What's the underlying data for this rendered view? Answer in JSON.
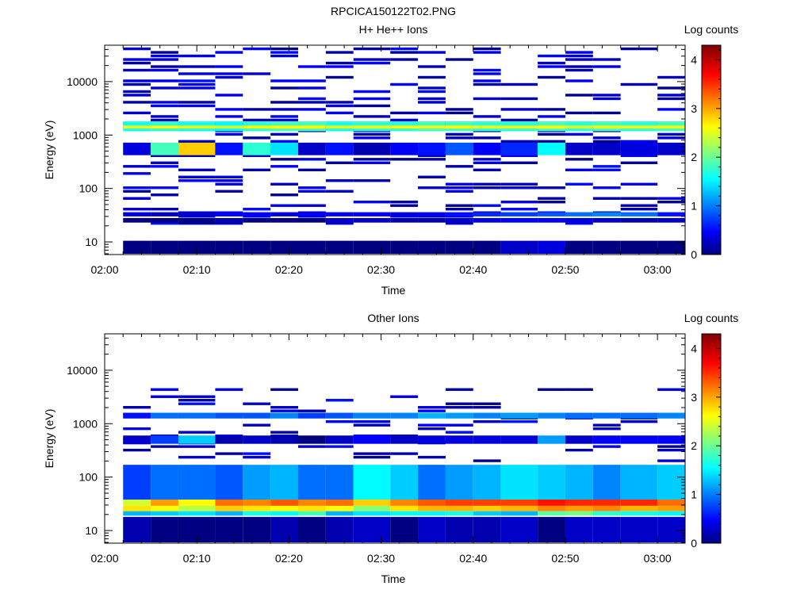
{
  "figure_title": "RPCICA150122T02.PNG",
  "chart_data": [
    {
      "type": "heatmap",
      "title": "H+ He++ Ions",
      "xlabel": "Time",
      "ylabel": "Energy (eV)",
      "colorbar_label": "Log counts",
      "colorbar_ticks": [
        "0",
        "1",
        "2",
        "3",
        "4"
      ],
      "clim": [
        0,
        4.3
      ],
      "colormap": "jet",
      "x_ticks": [
        "02:00",
        "02:10",
        "02:20",
        "02:30",
        "02:40",
        "02:50",
        "03:00"
      ],
      "y_ticks": [
        "10",
        "100",
        "1000",
        "10000"
      ],
      "y_scale": "log",
      "ylim": [
        5.8,
        48000
      ],
      "xlim": [
        "02:00",
        "03:03"
      ],
      "time_bins": [
        "02:02",
        "02:05",
        "02:08",
        "02:12",
        "02:15",
        "02:18",
        "02:21",
        "02:24",
        "02:27",
        "02:31",
        "02:34",
        "02:37",
        "02:40",
        "02:43",
        "02:47",
        "02:50",
        "02:53",
        "02:56",
        "03:00",
        "03:03"
      ],
      "bands": [
        {
          "e_min": 1180,
          "e_max": 1800,
          "values": [
            1.7,
            1.8,
            1.7,
            1.6,
            1.8,
            1.9,
            1.9,
            1.7,
            1.8,
            1.8,
            1.9,
            1.9,
            1.8,
            1.8,
            1.9,
            1.8,
            1.9,
            1.8,
            1.9
          ]
        },
        {
          "e_min": 1320,
          "e_max": 1500,
          "values": [
            2.6,
            2.7,
            2.6,
            2.5,
            2.7,
            2.7,
            2.7,
            2.6,
            2.6,
            2.7,
            2.6,
            2.7,
            2.6,
            2.6,
            2.7,
            2.5,
            2.6,
            2.6,
            2.6
          ]
        },
        {
          "e_min": 420,
          "e_max": 720,
          "values": [
            0.4,
            1.9,
            2.9,
            0.6,
            1.8,
            1.5,
            0.3,
            0.6,
            0.2,
            0.5,
            0.6,
            0.9,
            0.5,
            0.7,
            1.6,
            0.3,
            0.3,
            0.4,
            0.3
          ]
        },
        {
          "e_min": 30,
          "e_max": 36,
          "values": [
            0.4,
            0.3,
            0.3,
            0.5,
            0.5,
            0.4,
            0.5,
            0.5,
            0.5,
            0.4,
            0.5,
            0.6,
            0.7,
            0.8,
            0.9,
            1.0,
            1.1,
            1.0,
            0.6
          ]
        },
        {
          "e_min": 23,
          "e_max": 28,
          "values": [
            0.0,
            0.0,
            0.0,
            0.2,
            0.0,
            0.0,
            0.0,
            0.3,
            0.3,
            0.2,
            0.2,
            0.3,
            0.4,
            0.5,
            0.5,
            0.4,
            0.3,
            0.2,
            0.3
          ]
        },
        {
          "e_min": 6,
          "e_max": 10.5,
          "values": [
            0.0,
            0.0,
            0.0,
            0.0,
            0.0,
            0.0,
            0.0,
            0.0,
            0.0,
            0.0,
            0.0,
            0.0,
            0.0,
            0.3,
            0.4,
            0.0,
            0.0,
            0.0,
            0.0
          ]
        }
      ]
    },
    {
      "type": "heatmap",
      "title": "Other Ions",
      "xlabel": "Time",
      "ylabel": "Energy (eV)",
      "colorbar_label": "Log counts",
      "colorbar_ticks": [
        "0",
        "1",
        "2",
        "3",
        "4"
      ],
      "clim": [
        0,
        4.3
      ],
      "colormap": "jet",
      "x_ticks": [
        "02:00",
        "02:10",
        "02:20",
        "02:30",
        "02:40",
        "02:50",
        "03:00"
      ],
      "y_ticks": [
        "10",
        "100",
        "1000",
        "10000"
      ],
      "y_scale": "log",
      "ylim": [
        5.8,
        48000
      ],
      "xlim": [
        "02:00",
        "03:03"
      ],
      "time_bins": [
        "02:02",
        "02:05",
        "02:08",
        "02:12",
        "02:15",
        "02:18",
        "02:21",
        "02:24",
        "02:27",
        "02:31",
        "02:34",
        "02:37",
        "02:40",
        "02:43",
        "02:47",
        "02:50",
        "02:53",
        "02:56",
        "03:00",
        "03:03"
      ],
      "bands": [
        {
          "e_min": 29,
          "e_max": 38,
          "values": [
            2.5,
            3.1,
            2.7,
            3.3,
            3.2,
            3.4,
            3.2,
            3.3,
            2.9,
            3.2,
            3.4,
            3.5,
            3.5,
            3.5,
            3.7,
            3.6,
            3.6,
            3.6,
            3.3
          ]
        },
        {
          "e_min": 23,
          "e_max": 29,
          "values": [
            2.8,
            2.7,
            2.4,
            2.9,
            2.8,
            2.7,
            2.8,
            2.7,
            2.2,
            2.8,
            3.0,
            3.0,
            2.9,
            3.0,
            3.2,
            3.1,
            3.2,
            3.0,
            3.1
          ]
        },
        {
          "e_min": 19,
          "e_max": 23,
          "values": [
            1.3,
            1.4,
            1.5,
            1.3,
            1.7,
            1.6,
            1.9,
            1.3,
            1.5,
            1.6,
            1.6,
            1.7,
            1.4,
            1.3,
            2.0,
            2.1,
            1.8,
            1.7,
            1.6
          ]
        },
        {
          "e_min": 38,
          "e_max": 170,
          "values": [
            0.8,
            1.0,
            1.0,
            0.9,
            1.2,
            1.3,
            1.0,
            1.0,
            1.6,
            1.4,
            1.0,
            1.2,
            1.3,
            1.5,
            1.4,
            1.3,
            1.1,
            1.3,
            1.4
          ]
        },
        {
          "e_min": 1250,
          "e_max": 1600,
          "values": [
            0.6,
            1.0,
            1.0,
            0.9,
            0.9,
            1.1,
            0.8,
            0.9,
            1.1,
            1.1,
            1.3,
            1.2,
            1.1,
            1.2,
            1.1,
            1.0,
            1.0,
            1.0,
            1.1
          ]
        },
        {
          "e_min": 420,
          "e_max": 600,
          "values": [
            0.3,
            0.8,
            1.4,
            0.2,
            0.3,
            0.2,
            0.0,
            0.3,
            0.5,
            0.3,
            0.4,
            0.4,
            0.4,
            0.4,
            1.2,
            0.3,
            0.5,
            0.5,
            0.5
          ]
        },
        {
          "e_min": 6,
          "e_max": 18,
          "values": [
            0.2,
            0.0,
            0.0,
            0.0,
            0.0,
            0.2,
            0.0,
            0.2,
            0.3,
            0.0,
            0.3,
            0.2,
            0.2,
            0.3,
            0.0,
            0.3,
            0.3,
            0.3,
            0.3
          ]
        }
      ]
    }
  ]
}
